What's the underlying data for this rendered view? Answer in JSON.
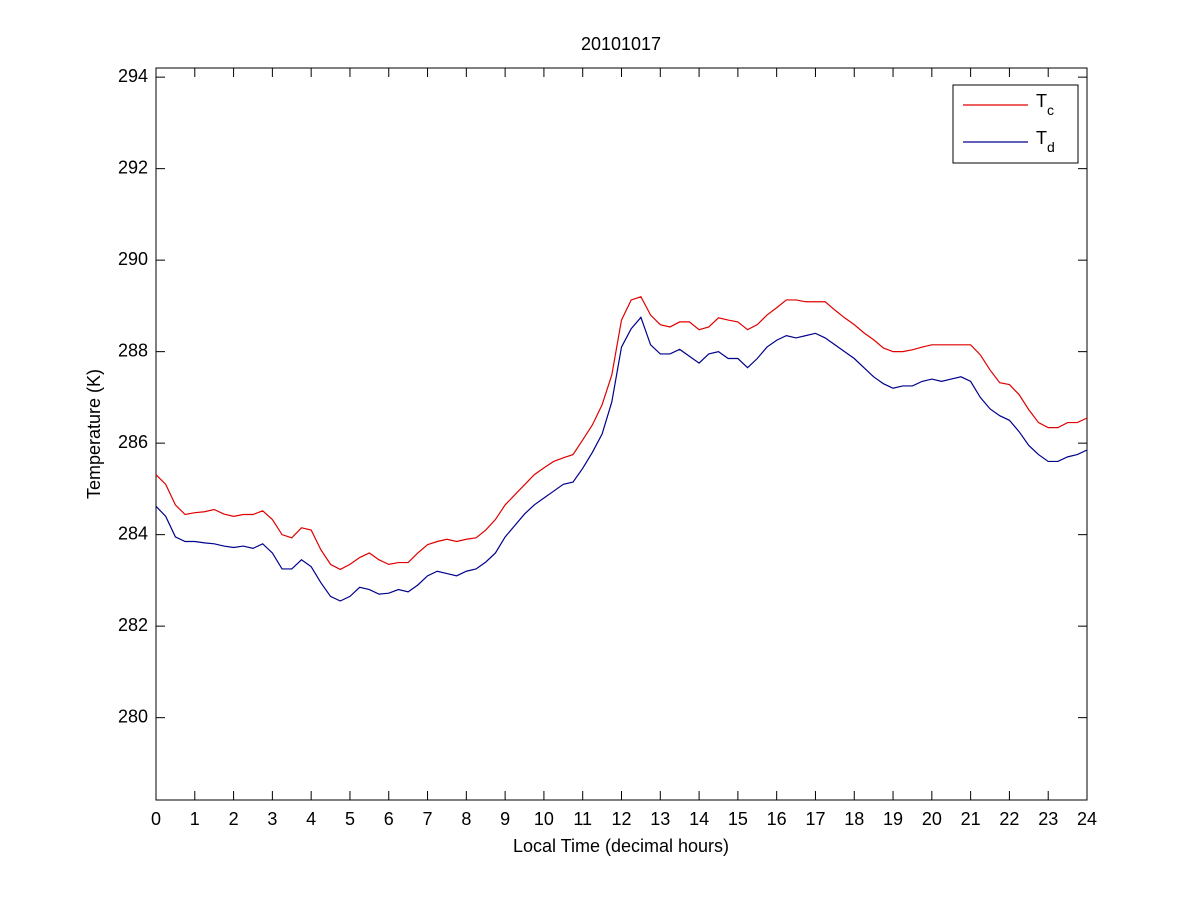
{
  "chart_data": {
    "type": "line",
    "title": "20101017",
    "x_label": "Local Time (decimal hours)",
    "y_label": "Temperature (K)",
    "x": [
      0,
      0.25,
      0.5,
      0.75,
      1,
      1.25,
      1.5,
      1.75,
      2,
      2.25,
      2.5,
      2.75,
      3,
      3.25,
      3.5,
      3.75,
      4,
      4.25,
      4.5,
      4.75,
      5,
      5.25,
      5.5,
      5.75,
      6,
      6.25,
      6.5,
      6.75,
      7,
      7.25,
      7.5,
      7.75,
      8,
      8.25,
      8.5,
      8.75,
      9,
      9.25,
      9.5,
      9.75,
      10,
      10.25,
      10.5,
      10.75,
      11,
      11.25,
      11.5,
      11.75,
      12,
      12.25,
      12.5,
      12.75,
      13,
      13.25,
      13.5,
      13.75,
      14,
      14.25,
      14.5,
      14.75,
      15,
      15.25,
      15.5,
      15.75,
      16,
      16.25,
      16.5,
      16.75,
      17,
      17.25,
      17.5,
      17.75,
      18,
      18.25,
      18.5,
      18.75,
      19,
      19.25,
      19.5,
      19.75,
      20,
      20.25,
      20.5,
      20.75,
      21,
      21.25,
      21.5,
      21.75,
      22,
      22.25,
      22.5,
      22.75,
      23,
      23.25,
      23.5,
      23.75,
      24
    ],
    "series": [
      {
        "name": "Tc",
        "color": "#e00000",
        "values": [
          285.31,
          285.1,
          284.65,
          284.44,
          284.48,
          284.5,
          284.55,
          284.45,
          284.4,
          284.44,
          284.44,
          284.52,
          284.33,
          284.0,
          283.93,
          284.15,
          284.1,
          283.67,
          283.35,
          283.24,
          283.35,
          283.5,
          283.6,
          283.45,
          283.35,
          283.39,
          283.39,
          283.6,
          283.78,
          283.85,
          283.9,
          283.85,
          283.9,
          283.93,
          284.1,
          284.33,
          284.65,
          284.87,
          285.09,
          285.31,
          285.46,
          285.6,
          285.68,
          285.75,
          286.07,
          286.4,
          286.84,
          287.49,
          288.69,
          289.13,
          289.2,
          288.8,
          288.59,
          288.54,
          288.65,
          288.65,
          288.48,
          288.54,
          288.74,
          288.69,
          288.65,
          288.48,
          288.59,
          288.8,
          288.96,
          289.13,
          289.13,
          289.09,
          289.09,
          289.09,
          288.91,
          288.74,
          288.59,
          288.41,
          288.26,
          288.08,
          288.0,
          288.0,
          288.04,
          288.1,
          288.15,
          288.15,
          288.15,
          288.15,
          288.15,
          287.93,
          287.6,
          287.32,
          287.28,
          287.06,
          286.73,
          286.45,
          286.34,
          286.34,
          286.45,
          286.45,
          286.55
        ]
      },
      {
        "name": "Td",
        "color": "#00008b",
        "values": [
          284.62,
          284.4,
          283.95,
          283.85,
          283.85,
          283.82,
          283.8,
          283.75,
          283.72,
          283.75,
          283.7,
          283.8,
          283.6,
          283.25,
          283.25,
          283.45,
          283.3,
          282.95,
          282.65,
          282.55,
          282.65,
          282.85,
          282.8,
          282.7,
          282.72,
          282.8,
          282.75,
          282.9,
          283.1,
          283.2,
          283.15,
          283.1,
          283.2,
          283.25,
          283.4,
          283.6,
          283.95,
          284.2,
          284.45,
          284.65,
          284.8,
          284.95,
          285.1,
          285.15,
          285.45,
          285.8,
          286.2,
          286.9,
          288.1,
          288.5,
          288.75,
          288.15,
          287.95,
          287.95,
          288.05,
          287.9,
          287.75,
          287.95,
          288.0,
          287.85,
          287.85,
          287.65,
          287.85,
          288.1,
          288.25,
          288.35,
          288.3,
          288.35,
          288.4,
          288.3,
          288.15,
          288.0,
          287.85,
          287.65,
          287.45,
          287.3,
          287.2,
          287.25,
          287.25,
          287.35,
          287.4,
          287.35,
          287.4,
          287.45,
          287.35,
          287.0,
          286.75,
          286.6,
          286.5,
          286.25,
          285.95,
          285.75,
          285.6,
          285.6,
          285.7,
          285.75,
          285.85
        ]
      }
    ],
    "xlim": [
      0,
      24
    ],
    "xticks": [
      0,
      1,
      2,
      3,
      4,
      5,
      6,
      7,
      8,
      9,
      10,
      11,
      12,
      13,
      14,
      15,
      16,
      17,
      18,
      19,
      20,
      21,
      22,
      23,
      24
    ],
    "ylim": [
      278.2,
      294.2
    ],
    "yticks": [
      280,
      282,
      284,
      286,
      288,
      290,
      292,
      294
    ],
    "grid": false,
    "legend": "top-right"
  }
}
